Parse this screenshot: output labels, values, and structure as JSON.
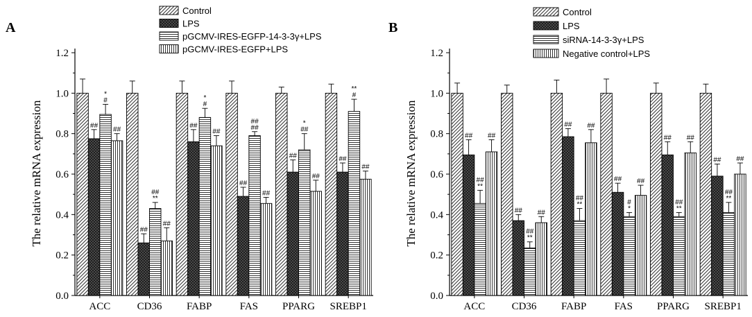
{
  "chart_data": [
    {
      "panel_label": "A",
      "type": "bar",
      "ylabel": "The relative mRNA expression",
      "xlabel": "",
      "ylim": [
        0,
        1.2
      ],
      "yticks": [
        "0.0",
        "0.2",
        "0.4",
        "0.6",
        "0.8",
        "1.0",
        "1.2"
      ],
      "categories": [
        "ACC",
        "CD36",
        "FABP",
        "FAS",
        "PPARG",
        "SREBP1"
      ],
      "legend_position": "top",
      "series": [
        {
          "name": "Control",
          "pattern": "diag",
          "values": [
            1.0,
            1.0,
            1.0,
            1.0,
            1.0,
            1.0
          ],
          "errors": [
            0.07,
            0.06,
            0.06,
            0.06,
            0.03,
            0.045
          ],
          "sig": [
            "",
            "",
            "",
            "",
            "",
            ""
          ]
        },
        {
          "name": "LPS",
          "pattern": "cross",
          "values": [
            0.775,
            0.26,
            0.76,
            0.49,
            0.61,
            0.61
          ],
          "errors": [
            0.045,
            0.045,
            0.06,
            0.045,
            0.06,
            0.045
          ],
          "sig": [
            "##",
            "##",
            "##",
            "##",
            "##",
            "##"
          ]
        },
        {
          "name": "pGCMV-IRES-EGFP-14-3-3γ+LPS",
          "pattern": "hlines",
          "values": [
            0.895,
            0.43,
            0.88,
            0.79,
            0.72,
            0.91
          ],
          "errors": [
            0.05,
            0.03,
            0.045,
            0.02,
            0.08,
            0.06
          ],
          "sig": [
            "*\n#",
            "##\n**",
            "*\n#",
            "##\n##",
            "*\n##",
            "**\n#"
          ]
        },
        {
          "name": "pGCMV-IRES-EGFP+LPS",
          "pattern": "vlines",
          "values": [
            0.765,
            0.27,
            0.74,
            0.455,
            0.515,
            0.575
          ],
          "errors": [
            0.035,
            0.065,
            0.05,
            0.03,
            0.055,
            0.04
          ],
          "sig": [
            "##",
            "##",
            "##",
            "##",
            "##",
            "##"
          ]
        }
      ]
    },
    {
      "panel_label": "B",
      "type": "bar",
      "ylabel": "The relative mRNA expression",
      "xlabel": "",
      "ylim": [
        0,
        1.2
      ],
      "yticks": [
        "0.0",
        "0.2",
        "0.4",
        "0.6",
        "0.8",
        "1.0",
        "1.2"
      ],
      "categories": [
        "ACC",
        "CD36",
        "FABP",
        "FAS",
        "PPARG",
        "SREBP1"
      ],
      "legend_position": "top",
      "series": [
        {
          "name": "Control",
          "pattern": "diag",
          "values": [
            1.0,
            1.0,
            1.0,
            1.0,
            1.0,
            1.0
          ],
          "errors": [
            0.05,
            0.04,
            0.065,
            0.07,
            0.05,
            0.045
          ],
          "sig": [
            "",
            "",
            "",
            "",
            "",
            ""
          ]
        },
        {
          "name": "LPS",
          "pattern": "cross",
          "values": [
            0.695,
            0.37,
            0.785,
            0.51,
            0.695,
            0.59
          ],
          "errors": [
            0.075,
            0.03,
            0.04,
            0.045,
            0.065,
            0.06
          ],
          "sig": [
            "##",
            "##",
            "##",
            "##",
            "##",
            "##"
          ]
        },
        {
          "name": "siRNA-14-3-3γ+LPS",
          "pattern": "hlines",
          "values": [
            0.455,
            0.235,
            0.37,
            0.39,
            0.39,
            0.41
          ],
          "errors": [
            0.065,
            0.03,
            0.06,
            0.02,
            0.02,
            0.05
          ],
          "sig": [
            "##\n**",
            "##\n**",
            "##\n**",
            "#\n*",
            "##\n**",
            "##\n**"
          ]
        },
        {
          "name": "Negative control+LPS",
          "pattern": "vlines",
          "values": [
            0.71,
            0.36,
            0.755,
            0.495,
            0.705,
            0.6
          ],
          "errors": [
            0.06,
            0.03,
            0.065,
            0.05,
            0.055,
            0.055
          ],
          "sig": [
            "##",
            "##",
            "##",
            "##",
            "##",
            "##"
          ]
        }
      ]
    }
  ]
}
